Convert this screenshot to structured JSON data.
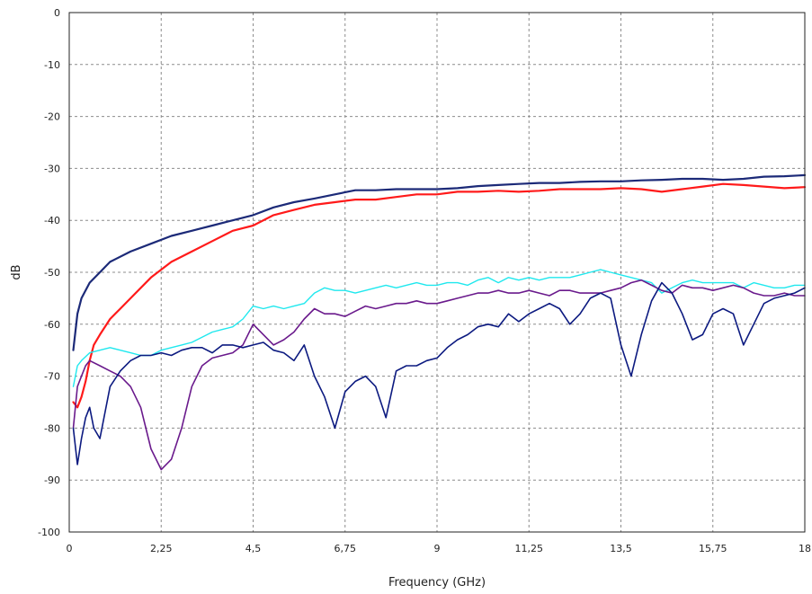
{
  "chart_data": {
    "type": "line",
    "title": "",
    "xlabel": "Frequency (GHz)",
    "ylabel": "dB",
    "xlim": [
      0,
      18
    ],
    "ylim": [
      -100,
      0
    ],
    "grid": true,
    "legend": "none",
    "xticks": [
      0,
      2.25,
      4.5,
      6.75,
      9,
      11.25,
      13.5,
      15.75,
      18
    ],
    "xtick_labels": [
      "0",
      "2,25",
      "4,5",
      "6,75",
      "9",
      "11,25",
      "13,5",
      "15,75",
      "18"
    ],
    "yticks": [
      0,
      -10,
      -20,
      -30,
      -40,
      -50,
      -60,
      -70,
      -80,
      -90,
      -100
    ],
    "ytick_labels": [
      "0",
      "-10",
      "-20",
      "-30",
      "-40",
      "-50",
      "-60",
      "-70",
      "-80",
      "-90",
      "-100"
    ],
    "series": [
      {
        "color": "#1c2a78",
        "width": 2.2,
        "x": [
          0.1,
          0.2,
          0.3,
          0.5,
          0.75,
          1,
          1.5,
          2,
          2.5,
          3,
          3.5,
          4,
          4.5,
          5,
          5.5,
          6,
          6.5,
          7,
          7.5,
          8,
          8.5,
          9,
          9.5,
          10,
          10.5,
          11,
          11.5,
          12,
          12.5,
          13,
          13.5,
          14,
          14.5,
          15,
          15.5,
          16,
          16.5,
          17,
          17.5,
          18
        ],
        "y": [
          -65,
          -58,
          -55,
          -52,
          -50,
          -48,
          -46,
          -44.5,
          -43,
          -42,
          -41,
          -40,
          -39,
          -37.5,
          -36.5,
          -35.8,
          -35,
          -34.2,
          -34.2,
          -34,
          -34,
          -34,
          -33.8,
          -33.4,
          -33.2,
          -33,
          -32.8,
          -32.8,
          -32.6,
          -32.5,
          -32.5,
          -32.3,
          -32.2,
          -32,
          -32,
          -32.2,
          -32,
          -31.6,
          -31.5,
          -31.3
        ]
      },
      {
        "color": "#ff1a1a",
        "width": 2.2,
        "x": [
          0.1,
          0.2,
          0.3,
          0.4,
          0.5,
          0.6,
          0.75,
          1,
          1.25,
          1.5,
          2,
          2.5,
          3,
          3.5,
          4,
          4.5,
          5,
          5.5,
          6,
          6.5,
          7,
          7.5,
          8,
          8.5,
          9,
          9.5,
          10,
          10.5,
          11,
          11.5,
          12,
          12.5,
          13,
          13.5,
          14,
          14.5,
          15,
          15.5,
          16,
          16.5,
          17,
          17.5,
          18
        ],
        "y": [
          -75,
          -76,
          -74,
          -71,
          -67,
          -64,
          -62,
          -59,
          -57,
          -55,
          -51,
          -48,
          -46,
          -44,
          -42,
          -41,
          -39,
          -38,
          -37,
          -36.5,
          -36,
          -36,
          -35.5,
          -35,
          -35,
          -34.5,
          -34.5,
          -34.3,
          -34.5,
          -34.3,
          -34,
          -34,
          -34,
          -33.8,
          -34,
          -34.5,
          -34,
          -33.5,
          -33,
          -33.2,
          -33.5,
          -33.8,
          -33.6
        ]
      },
      {
        "color": "#1fe8ee",
        "width": 1.4,
        "x": [
          0.1,
          0.2,
          0.3,
          0.5,
          0.75,
          1,
          1.25,
          1.5,
          1.75,
          2,
          2.25,
          2.5,
          2.75,
          3,
          3.25,
          3.5,
          3.75,
          4,
          4.25,
          4.5,
          4.75,
          5,
          5.25,
          5.5,
          5.75,
          6,
          6.25,
          6.5,
          6.75,
          7,
          7.25,
          7.5,
          7.75,
          8,
          8.25,
          8.5,
          8.75,
          9,
          9.25,
          9.5,
          9.75,
          10,
          10.25,
          10.5,
          10.75,
          11,
          11.25,
          11.5,
          11.75,
          12,
          12.25,
          12.5,
          12.75,
          13,
          13.25,
          13.5,
          13.75,
          14,
          14.25,
          14.5,
          14.75,
          15,
          15.25,
          15.5,
          15.75,
          16,
          16.25,
          16.5,
          16.75,
          17,
          17.25,
          17.5,
          17.75,
          18
        ],
        "y": [
          -72,
          -68,
          -67,
          -65.5,
          -65,
          -64.5,
          -65,
          -65.5,
          -66,
          -66,
          -65,
          -64.5,
          -64,
          -63.5,
          -62.5,
          -61.5,
          -61,
          -60.5,
          -59,
          -56.5,
          -57,
          -56.5,
          -57,
          -56.5,
          -56,
          -54,
          -53,
          -53.5,
          -53.5,
          -54,
          -53.5,
          -53,
          -52.5,
          -53,
          -52.5,
          -52,
          -52.5,
          -52.5,
          -52,
          -52,
          -52.5,
          -51.5,
          -51,
          -52,
          -51,
          -51.5,
          -51,
          -51.5,
          -51,
          -51,
          -51,
          -50.5,
          -50,
          -49.5,
          -50,
          -50.5,
          -51,
          -51.5,
          -52,
          -54,
          -53,
          -52,
          -51.5,
          -52,
          -52,
          -52,
          -52,
          -53,
          -52,
          -52.5,
          -53,
          -53,
          -52.5,
          -52.5
        ]
      },
      {
        "color": "#6a1a8c",
        "width": 1.6,
        "x": [
          0.1,
          0.2,
          0.3,
          0.4,
          0.5,
          0.75,
          1,
          1.25,
          1.5,
          1.75,
          2,
          2.25,
          2.5,
          2.75,
          3,
          3.25,
          3.5,
          3.75,
          4,
          4.25,
          4.5,
          4.75,
          5,
          5.25,
          5.5,
          5.75,
          6,
          6.25,
          6.5,
          6.75,
          7,
          7.25,
          7.5,
          7.75,
          8,
          8.25,
          8.5,
          8.75,
          9,
          9.25,
          9.5,
          9.75,
          10,
          10.25,
          10.5,
          10.75,
          11,
          11.25,
          11.5,
          11.75,
          12,
          12.25,
          12.5,
          12.75,
          13,
          13.25,
          13.5,
          13.75,
          14,
          14.25,
          14.5,
          14.75,
          15,
          15.25,
          15.5,
          15.75,
          16,
          16.25,
          16.5,
          16.75,
          17,
          17.25,
          17.5,
          17.75,
          18
        ],
        "y": [
          -80,
          -72,
          -70,
          -68,
          -67,
          -68,
          -69,
          -70,
          -72,
          -76,
          -84,
          -88,
          -86,
          -80,
          -72,
          -68,
          -66.5,
          -66,
          -65.5,
          -64,
          -60,
          -62,
          -64,
          -63,
          -61.5,
          -59,
          -57,
          -58,
          -58,
          -58.5,
          -57.5,
          -56.5,
          -57,
          -56.5,
          -56,
          -56,
          -55.5,
          -56,
          -56,
          -55.5,
          -55,
          -54.5,
          -54,
          -54,
          -53.5,
          -54,
          -54,
          -53.5,
          -54,
          -54.5,
          -53.5,
          -53.5,
          -54,
          -54,
          -54,
          -53.5,
          -53,
          -52,
          -51.5,
          -52.5,
          -53.5,
          -54,
          -52.5,
          -53,
          -53,
          -53.5,
          -53,
          -52.5,
          -53,
          -54,
          -54.5,
          -54.5,
          -54,
          -54.5,
          -54.5
        ]
      },
      {
        "color": "#0c1a80",
        "width": 1.6,
        "x": [
          0.1,
          0.2,
          0.3,
          0.4,
          0.5,
          0.6,
          0.75,
          1,
          1.25,
          1.5,
          1.75,
          2,
          2.25,
          2.5,
          2.75,
          3,
          3.25,
          3.5,
          3.75,
          4,
          4.25,
          4.5,
          4.75,
          5,
          5.25,
          5.5,
          5.75,
          6,
          6.25,
          6.5,
          6.75,
          7,
          7.25,
          7.5,
          7.75,
          8,
          8.25,
          8.5,
          8.75,
          9,
          9.25,
          9.5,
          9.75,
          10,
          10.25,
          10.5,
          10.75,
          11,
          11.25,
          11.5,
          11.75,
          12,
          12.25,
          12.5,
          12.75,
          13,
          13.25,
          13.5,
          13.75,
          14,
          14.25,
          14.5,
          14.75,
          15,
          15.25,
          15.5,
          15.75,
          16,
          16.25,
          16.5,
          16.75,
          17,
          17.25,
          17.5,
          17.75,
          18
        ],
        "y": [
          -80,
          -87,
          -82,
          -78,
          -76,
          -80,
          -82,
          -72,
          -69,
          -67,
          -66,
          -66,
          -65.5,
          -66,
          -65,
          -64.5,
          -64.5,
          -65.5,
          -64,
          -64,
          -64.5,
          -64,
          -63.5,
          -65,
          -65.5,
          -67,
          -64,
          -70,
          -74,
          -80,
          -73,
          -71,
          -70,
          -72,
          -78,
          -69,
          -68,
          -68,
          -67,
          -66.5,
          -64.5,
          -63,
          -62,
          -60.5,
          -60,
          -60.5,
          -58,
          -59.5,
          -58,
          -57,
          -56,
          -57,
          -60,
          -58,
          -55,
          -54,
          -55,
          -64,
          -70,
          -62,
          -55.5,
          -52,
          -54,
          -58,
          -63,
          -62,
          -58,
          -57,
          -58,
          -64,
          -60,
          -56,
          -55,
          -54.5,
          -54,
          -53
        ]
      }
    ]
  }
}
